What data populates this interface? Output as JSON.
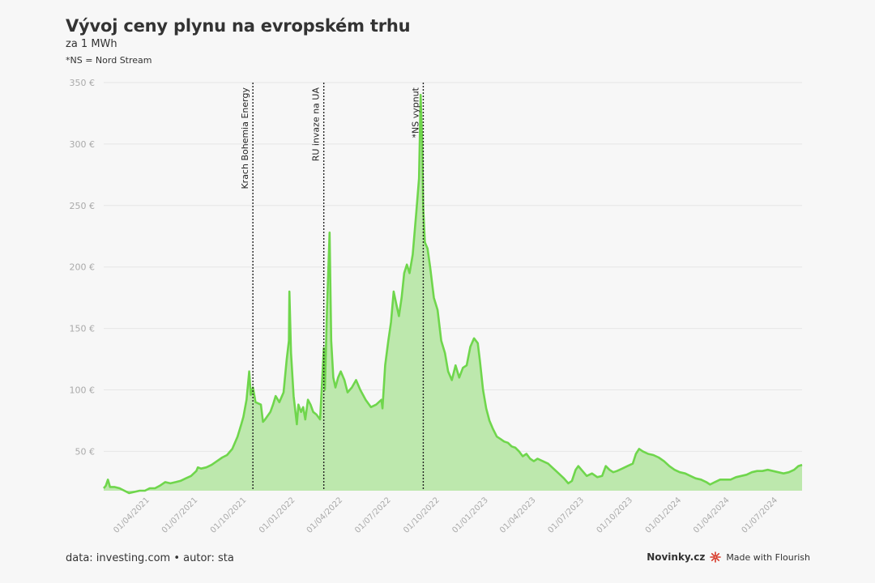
{
  "header": {
    "title": "Vývoj ceny plynu na evropském trhu",
    "subtitle": "za 1 MWh",
    "note": "*NS = Nord Stream"
  },
  "footer": {
    "source": "data: investing.com • autor: sta",
    "brand": "Novinky.cz",
    "made_with": "Made with Flourish",
    "icon": "flourish-burst-icon"
  },
  "colors": {
    "line": "#6fd64c",
    "area": "#bde8ad",
    "grid": "#e6e6e6",
    "tick": "#aaaaaa",
    "event_line": "#222222",
    "flourish_icon": "#d83a2a"
  },
  "chart_data": {
    "type": "area",
    "ylim": [
      18,
      350
    ],
    "yticks": [
      {
        "value": 50,
        "label": "50 €"
      },
      {
        "value": 100,
        "label": "100 €"
      },
      {
        "value": 150,
        "label": "150 €"
      },
      {
        "value": 200,
        "label": "200 €"
      },
      {
        "value": 250,
        "label": "250 €"
      },
      {
        "value": 300,
        "label": "300 €"
      },
      {
        "value": 350,
        "label": "350 €"
      }
    ],
    "xlim": [
      "2021-01-04",
      "2024-08-16"
    ],
    "xticks": [
      {
        "date": "2021-04-01",
        "label": "01/04/2021"
      },
      {
        "date": "2021-07-01",
        "label": "01/07/2021"
      },
      {
        "date": "2021-10-01",
        "label": "01/10/2021"
      },
      {
        "date": "2022-01-01",
        "label": "01/01/2022"
      },
      {
        "date": "2022-04-01",
        "label": "01/04/2022"
      },
      {
        "date": "2022-07-01",
        "label": "01/07/2022"
      },
      {
        "date": "2022-10-01",
        "label": "01/10/2022"
      },
      {
        "date": "2023-01-01",
        "label": "01/01/2023"
      },
      {
        "date": "2023-04-01",
        "label": "01/04/2023"
      },
      {
        "date": "2023-07-01",
        "label": "01/07/2023"
      },
      {
        "date": "2023-10-01",
        "label": "01/10/2023"
      },
      {
        "date": "2024-01-01",
        "label": "01/01/2024"
      },
      {
        "date": "2024-04-01",
        "label": "01/04/2024"
      },
      {
        "date": "2024-07-01",
        "label": "01/07/2024"
      }
    ],
    "events": [
      {
        "date": "2021-10-13",
        "label": "Krach Bohemia Energy"
      },
      {
        "date": "2022-02-24",
        "label": "RU invaze na UA"
      },
      {
        "date": "2022-08-31",
        "label": "*NS vypnut"
      }
    ],
    "series": [
      {
        "points": [
          [
            "2021-01-04",
            20
          ],
          [
            "2021-01-08",
            22
          ],
          [
            "2021-01-12",
            27
          ],
          [
            "2021-01-16",
            21
          ],
          [
            "2021-01-24",
            21
          ],
          [
            "2021-02-03",
            20
          ],
          [
            "2021-02-12",
            18
          ],
          [
            "2021-02-21",
            16
          ],
          [
            "2021-03-03",
            17
          ],
          [
            "2021-03-13",
            18
          ],
          [
            "2021-03-23",
            18
          ],
          [
            "2021-04-01",
            20
          ],
          [
            "2021-04-11",
            20
          ],
          [
            "2021-04-20",
            22
          ],
          [
            "2021-04-30",
            25
          ],
          [
            "2021-05-10",
            24
          ],
          [
            "2021-05-20",
            25
          ],
          [
            "2021-05-29",
            26
          ],
          [
            "2021-06-08",
            28
          ],
          [
            "2021-06-18",
            30
          ],
          [
            "2021-06-28",
            34
          ],
          [
            "2021-07-01",
            37
          ],
          [
            "2021-07-07",
            36
          ],
          [
            "2021-07-17",
            37
          ],
          [
            "2021-07-27",
            39
          ],
          [
            "2021-08-06",
            42
          ],
          [
            "2021-08-16",
            45
          ],
          [
            "2021-08-25",
            47
          ],
          [
            "2021-09-04",
            52
          ],
          [
            "2021-09-14",
            62
          ],
          [
            "2021-09-21",
            72
          ],
          [
            "2021-09-25",
            78
          ],
          [
            "2021-10-01",
            92
          ],
          [
            "2021-10-06",
            115
          ],
          [
            "2021-10-09",
            96
          ],
          [
            "2021-10-13",
            102
          ],
          [
            "2021-10-18",
            90
          ],
          [
            "2021-10-28",
            88
          ],
          [
            "2021-11-01",
            74
          ],
          [
            "2021-11-05",
            76
          ],
          [
            "2021-11-15",
            82
          ],
          [
            "2021-11-20",
            88
          ],
          [
            "2021-11-25",
            95
          ],
          [
            "2021-12-02",
            90
          ],
          [
            "2021-12-10",
            98
          ],
          [
            "2021-12-16",
            125
          ],
          [
            "2021-12-20",
            140
          ],
          [
            "2021-12-21",
            180
          ],
          [
            "2021-12-24",
            130
          ],
          [
            "2021-12-29",
            95
          ],
          [
            "2022-01-04",
            72
          ],
          [
            "2022-01-07",
            88
          ],
          [
            "2022-01-12",
            82
          ],
          [
            "2022-01-16",
            86
          ],
          [
            "2022-01-20",
            76
          ],
          [
            "2022-01-25",
            92
          ],
          [
            "2022-01-30",
            88
          ],
          [
            "2022-02-04",
            82
          ],
          [
            "2022-02-10",
            80
          ],
          [
            "2022-02-17",
            76
          ],
          [
            "2022-02-24",
            134
          ],
          [
            "2022-02-26",
            100
          ],
          [
            "2022-03-02",
            165
          ],
          [
            "2022-03-07",
            228
          ],
          [
            "2022-03-10",
            140
          ],
          [
            "2022-03-14",
            110
          ],
          [
            "2022-03-18",
            102
          ],
          [
            "2022-03-23",
            110
          ],
          [
            "2022-03-28",
            115
          ],
          [
            "2022-04-04",
            108
          ],
          [
            "2022-04-10",
            98
          ],
          [
            "2022-04-18",
            102
          ],
          [
            "2022-04-26",
            108
          ],
          [
            "2022-05-04",
            100
          ],
          [
            "2022-05-14",
            92
          ],
          [
            "2022-05-24",
            86
          ],
          [
            "2022-06-03",
            88
          ],
          [
            "2022-06-13",
            92
          ],
          [
            "2022-06-15",
            85
          ],
          [
            "2022-06-20",
            120
          ],
          [
            "2022-06-26",
            140
          ],
          [
            "2022-07-01",
            155
          ],
          [
            "2022-07-06",
            180
          ],
          [
            "2022-07-11",
            170
          ],
          [
            "2022-07-16",
            160
          ],
          [
            "2022-07-21",
            175
          ],
          [
            "2022-07-26",
            195
          ],
          [
            "2022-07-31",
            202
          ],
          [
            "2022-08-05",
            195
          ],
          [
            "2022-08-11",
            210
          ],
          [
            "2022-08-18",
            245
          ],
          [
            "2022-08-23",
            272
          ],
          [
            "2022-08-26",
            340
          ],
          [
            "2022-08-29",
            300
          ],
          [
            "2022-08-31",
            248
          ],
          [
            "2022-09-03",
            220
          ],
          [
            "2022-09-08",
            215
          ],
          [
            "2022-09-13",
            200
          ],
          [
            "2022-09-20",
            175
          ],
          [
            "2022-09-27",
            165
          ],
          [
            "2022-10-04",
            140
          ],
          [
            "2022-10-11",
            130
          ],
          [
            "2022-10-17",
            115
          ],
          [
            "2022-10-24",
            108
          ],
          [
            "2022-10-31",
            120
          ],
          [
            "2022-11-07",
            110
          ],
          [
            "2022-11-14",
            118
          ],
          [
            "2022-11-21",
            120
          ],
          [
            "2022-11-28",
            135
          ],
          [
            "2022-12-05",
            142
          ],
          [
            "2022-12-12",
            138
          ],
          [
            "2022-12-16",
            124
          ],
          [
            "2022-12-22",
            100
          ],
          [
            "2022-12-28",
            85
          ],
          [
            "2023-01-03",
            75
          ],
          [
            "2023-01-10",
            68
          ],
          [
            "2023-01-17",
            62
          ],
          [
            "2023-01-24",
            60
          ],
          [
            "2023-01-31",
            58
          ],
          [
            "2023-02-07",
            57
          ],
          [
            "2023-02-14",
            54
          ],
          [
            "2023-02-21",
            53
          ],
          [
            "2023-02-28",
            50
          ],
          [
            "2023-03-07",
            46
          ],
          [
            "2023-03-14",
            48
          ],
          [
            "2023-03-21",
            44
          ],
          [
            "2023-03-28",
            42
          ],
          [
            "2023-04-04",
            44
          ],
          [
            "2023-04-14",
            42
          ],
          [
            "2023-04-24",
            40
          ],
          [
            "2023-05-04",
            36
          ],
          [
            "2023-05-14",
            32
          ],
          [
            "2023-05-24",
            28
          ],
          [
            "2023-06-01",
            24
          ],
          [
            "2023-06-08",
            26
          ],
          [
            "2023-06-15",
            35
          ],
          [
            "2023-06-20",
            38
          ],
          [
            "2023-06-28",
            34
          ],
          [
            "2023-07-06",
            30
          ],
          [
            "2023-07-16",
            32
          ],
          [
            "2023-07-26",
            29
          ],
          [
            "2023-08-04",
            30
          ],
          [
            "2023-08-11",
            38
          ],
          [
            "2023-08-18",
            35
          ],
          [
            "2023-08-25",
            33
          ],
          [
            "2023-09-01",
            34
          ],
          [
            "2023-09-11",
            36
          ],
          [
            "2023-09-21",
            38
          ],
          [
            "2023-10-01",
            40
          ],
          [
            "2023-10-07",
            48
          ],
          [
            "2023-10-13",
            52
          ],
          [
            "2023-10-20",
            50
          ],
          [
            "2023-10-30",
            48
          ],
          [
            "2023-11-09",
            47
          ],
          [
            "2023-11-19",
            45
          ],
          [
            "2023-11-29",
            42
          ],
          [
            "2023-12-09",
            38
          ],
          [
            "2023-12-19",
            35
          ],
          [
            "2023-12-29",
            33
          ],
          [
            "2024-01-08",
            32
          ],
          [
            "2024-01-18",
            30
          ],
          [
            "2024-01-28",
            28
          ],
          [
            "2024-02-07",
            27
          ],
          [
            "2024-02-17",
            25
          ],
          [
            "2024-02-24",
            23
          ],
          [
            "2024-03-04",
            25
          ],
          [
            "2024-03-14",
            27
          ],
          [
            "2024-03-24",
            27
          ],
          [
            "2024-04-03",
            27
          ],
          [
            "2024-04-13",
            29
          ],
          [
            "2024-04-23",
            30
          ],
          [
            "2024-05-03",
            31
          ],
          [
            "2024-05-13",
            33
          ],
          [
            "2024-05-23",
            34
          ],
          [
            "2024-06-02",
            34
          ],
          [
            "2024-06-12",
            35
          ],
          [
            "2024-06-22",
            34
          ],
          [
            "2024-07-02",
            33
          ],
          [
            "2024-07-12",
            32
          ],
          [
            "2024-07-22",
            33
          ],
          [
            "2024-08-01",
            35
          ],
          [
            "2024-08-09",
            38
          ],
          [
            "2024-08-16",
            39
          ]
        ]
      }
    ]
  }
}
